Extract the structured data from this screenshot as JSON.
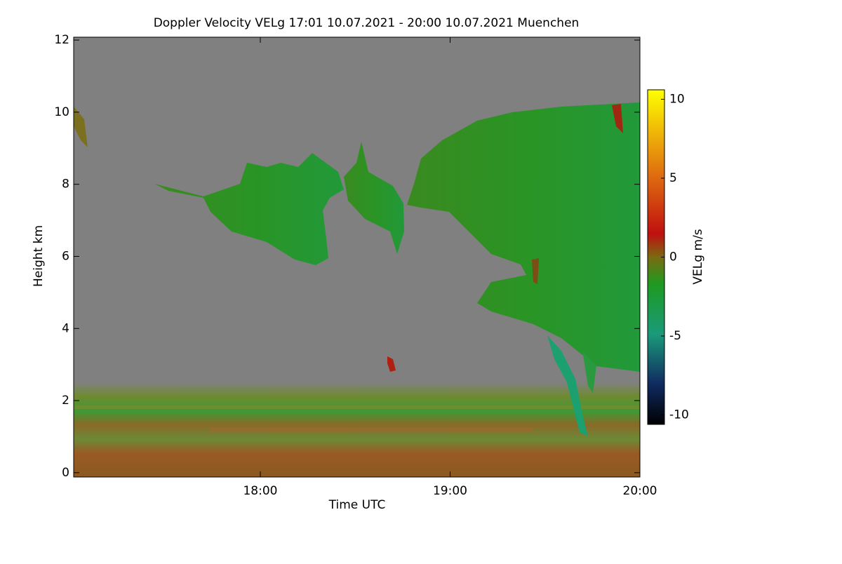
{
  "chart_data": {
    "type": "heatmap",
    "title": "Doppler Velocity VELg   17:01 10.07.2021 - 20:00 10.07.2021 Muenchen",
    "x_label": "Time UTC",
    "y_label": "Height km",
    "colorbar_label": "VELg m/s",
    "xlim": [
      17.0167,
      20.0
    ],
    "xticks": [
      {
        "value": 18,
        "label": "18:00"
      },
      {
        "value": 19,
        "label": "19:00"
      },
      {
        "value": 20,
        "label": "20:00"
      }
    ],
    "ylim": [
      -0.12,
      12.08
    ],
    "yticks": [
      0,
      2,
      4,
      6,
      8,
      10,
      12
    ],
    "zlim": [
      -10.6,
      10.6
    ],
    "zticks": [
      -10,
      -5,
      0,
      5,
      10
    ]
  }
}
